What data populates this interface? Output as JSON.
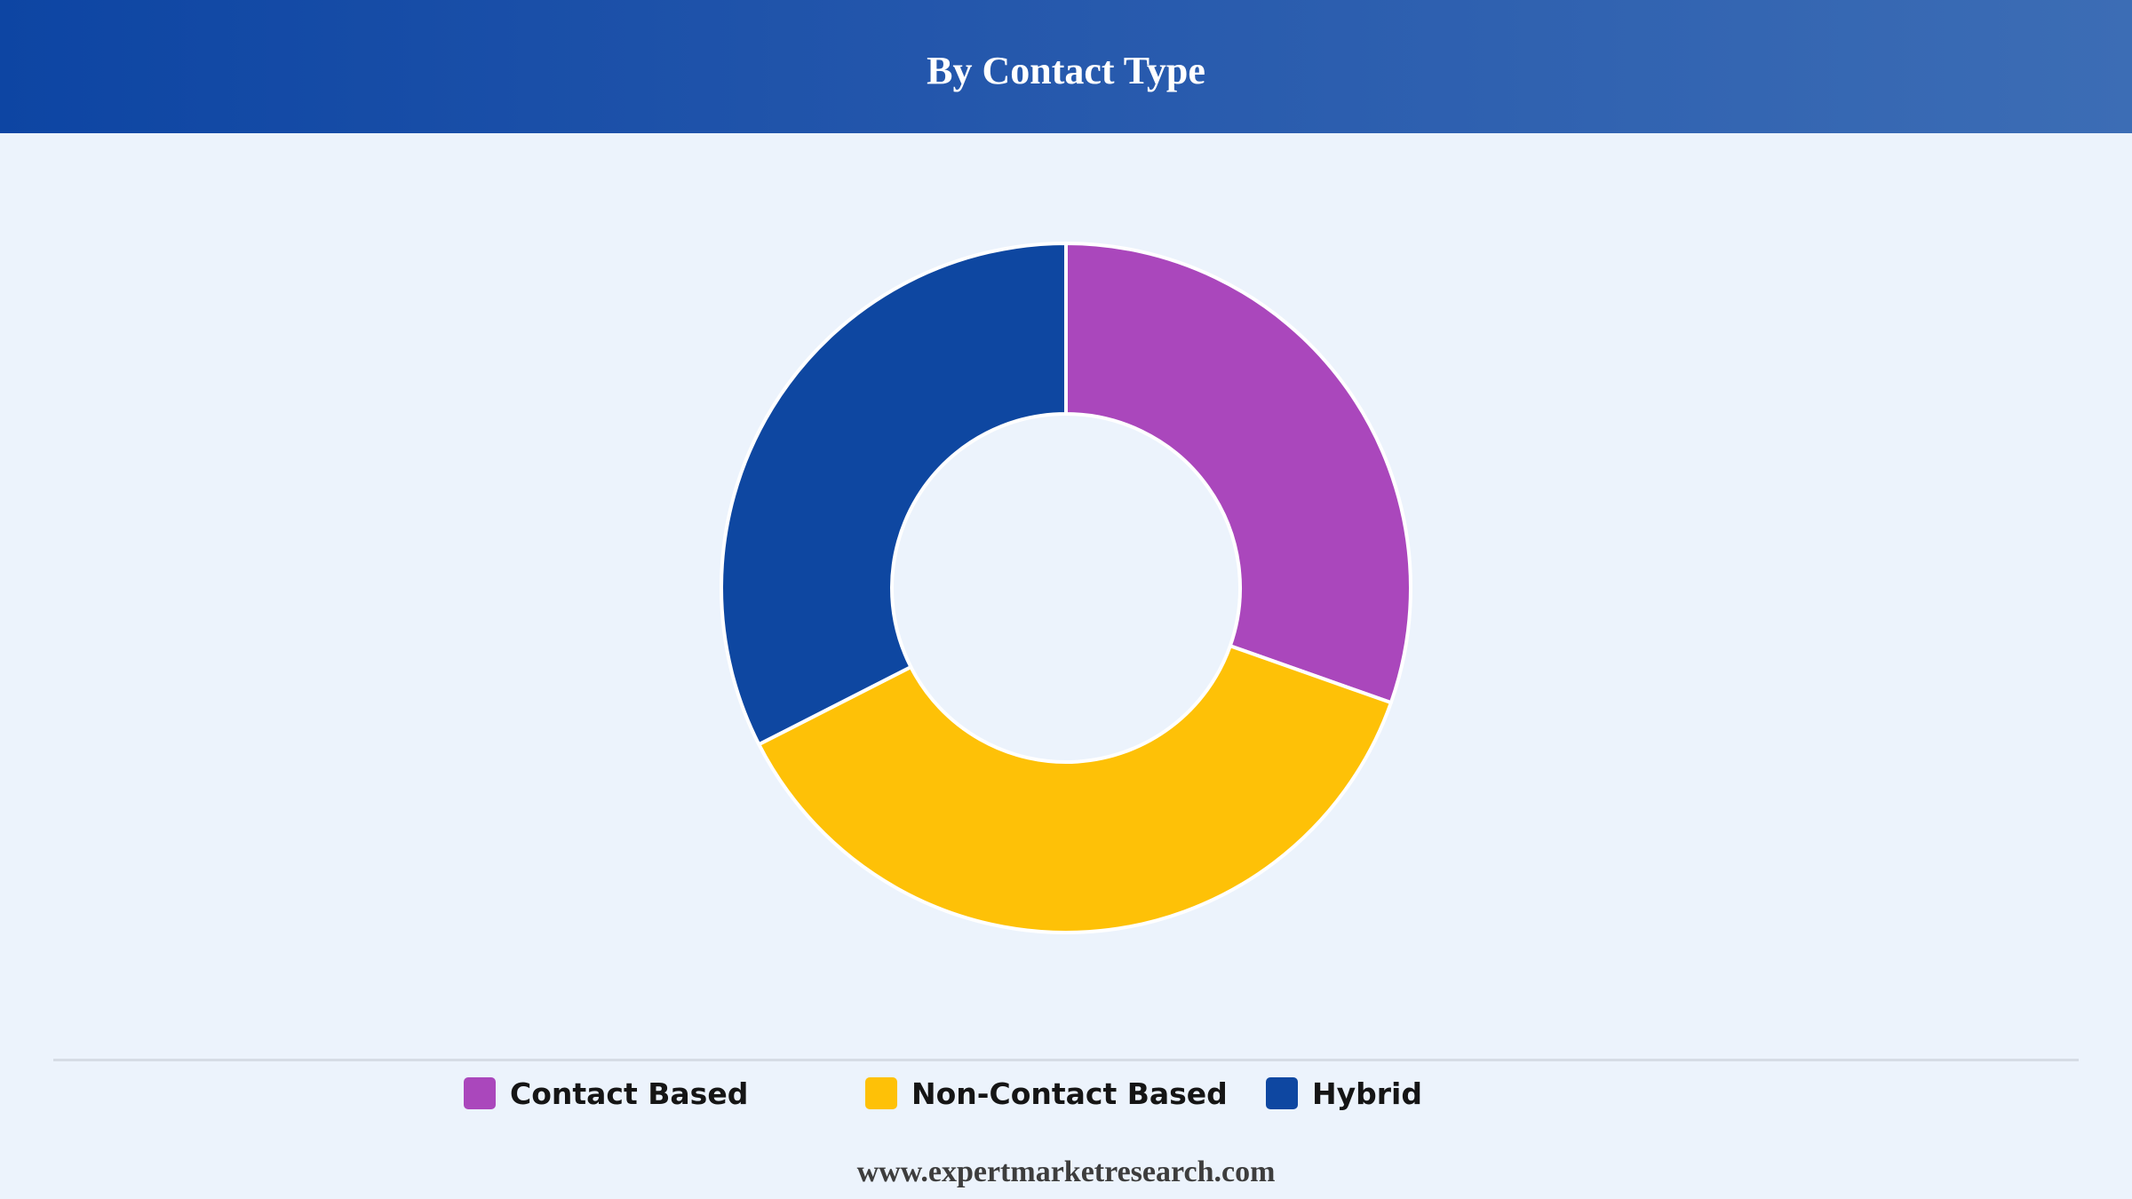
{
  "header": {
    "title": "By Contact Type"
  },
  "chart_data": {
    "type": "pie",
    "variant": "donut",
    "categories": [
      "Contact Based",
      "Non-Contact Based",
      "Hybrid"
    ],
    "values": [
      30.4,
      37.1,
      32.5
    ],
    "colors": [
      "#aa47bc",
      "#fec107",
      "#0e47a1"
    ],
    "start_angle_deg": 0,
    "direction": "clockwise",
    "legend_position": "bottom",
    "slice_border_color": "#ffffff"
  },
  "legend": {
    "items": [
      {
        "label": "Contact Based",
        "color": "#aa47bc"
      },
      {
        "label": "Non-Contact Based",
        "color": "#fec107"
      },
      {
        "label": "Hybrid",
        "color": "#0e47a1"
      }
    ]
  },
  "footer": {
    "source": "www.expertmarketresearch.com"
  },
  "colors": {
    "background": "#ecf3fc",
    "header_start": "#0d45a3",
    "header_end": "#3c6db5"
  }
}
